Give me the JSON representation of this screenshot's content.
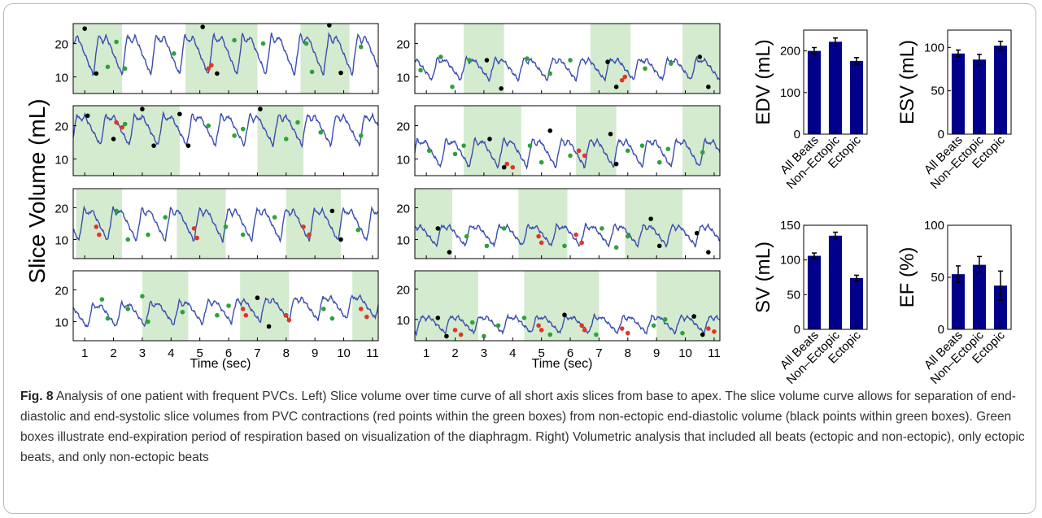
{
  "colors": {
    "curve": "#3b4db0",
    "shade": "#d4ebcf",
    "bar": "#00008b",
    "point_ed": "#000000",
    "point_ectopic": "#e0352b",
    "point_other": "#2ca33a"
  },
  "left_panel": {
    "ylabel": "Slice Volume (mL)",
    "xlabel": "Time (sec)",
    "xticks": [
      1,
      2,
      3,
      4,
      5,
      6,
      7,
      8,
      9,
      10,
      11
    ],
    "yticks": [
      10,
      20
    ]
  },
  "bar_panel": {
    "categories": [
      "All Beats",
      "Non–Ectopic",
      "Ectopic"
    ]
  },
  "chart_data": [
    {
      "type": "line",
      "panel": "slice-r1c1",
      "x_range": [
        0.6,
        11.2
      ],
      "ylim": [
        5,
        26
      ],
      "yticks": [
        10,
        20
      ],
      "shaded_x_ranges": [
        [
          0.6,
          2.3
        ],
        [
          4.5,
          7.0
        ],
        [
          8.5,
          10.2
        ]
      ],
      "profile": {
        "period": 1.0,
        "phase": 0.3,
        "mean": 17.0,
        "amp": 6.5,
        "trend": 0.0
      },
      "points_black": [
        [
          1.0,
          24.5
        ],
        [
          1.4,
          11.0
        ],
        [
          5.1,
          25.0
        ],
        [
          5.6,
          11.0
        ],
        [
          9.5,
          25.5
        ],
        [
          9.9,
          11.2
        ]
      ],
      "points_red": [
        [
          5.3,
          12.5
        ],
        [
          5.4,
          13.5
        ]
      ],
      "points_green": [
        [
          2.1,
          20.5
        ],
        [
          1.8,
          13.0
        ],
        [
          2.4,
          12.5
        ],
        [
          4.1,
          17.0
        ],
        [
          6.2,
          21.0
        ],
        [
          7.2,
          20.0
        ],
        [
          8.7,
          20.0
        ],
        [
          8.9,
          11.5
        ],
        [
          10.6,
          19.0
        ]
      ]
    },
    {
      "type": "line",
      "panel": "slice-r2c1",
      "x_range": [
        0.6,
        11.2
      ],
      "ylim": [
        5,
        26
      ],
      "yticks": [
        10,
        20
      ],
      "shaded_x_ranges": [
        [
          0.6,
          4.3
        ],
        [
          7.0,
          8.6
        ]
      ],
      "profile": {
        "period": 1.0,
        "phase": 0.55,
        "mean": 19.0,
        "amp": 5.0,
        "trend": 0.0
      },
      "points_black": [
        [
          1.1,
          23.0
        ],
        [
          2.0,
          16.0
        ],
        [
          3.0,
          25.0
        ],
        [
          3.4,
          14.0
        ],
        [
          4.3,
          23.5
        ],
        [
          4.6,
          14.0
        ],
        [
          7.1,
          25.0
        ]
      ],
      "points_red": [
        [
          2.1,
          21.0
        ],
        [
          2.3,
          19.5
        ]
      ],
      "points_green": [
        [
          2.4,
          20.5
        ],
        [
          5.3,
          20.0
        ],
        [
          6.2,
          17.0
        ],
        [
          6.5,
          19.0
        ],
        [
          8.0,
          16.0
        ],
        [
          8.4,
          21.0
        ],
        [
          9.2,
          18.0
        ],
        [
          10.6,
          17.0
        ]
      ]
    },
    {
      "type": "line",
      "panel": "slice-r3c1",
      "x_range": [
        0.6,
        11.2
      ],
      "ylim": [
        4,
        26
      ],
      "yticks": [
        10,
        20
      ],
      "shaded_x_ranges": [
        [
          0.7,
          2.3
        ],
        [
          4.2,
          5.9
        ],
        [
          8.0,
          9.9
        ]
      ],
      "profile": {
        "period": 1.0,
        "phase": 0.8,
        "mean": 15.0,
        "amp": 5.5,
        "trend": 0.0
      },
      "points_black": [
        [
          9.6,
          19.0
        ],
        [
          9.9,
          10.0
        ]
      ],
      "points_red": [
        [
          1.4,
          14.0
        ],
        [
          1.5,
          11.5
        ],
        [
          4.8,
          13.5
        ],
        [
          4.9,
          10.5
        ],
        [
          8.6,
          14.0
        ],
        [
          8.8,
          11.5
        ]
      ],
      "points_green": [
        [
          2.1,
          19.0
        ],
        [
          2.5,
          10.0
        ],
        [
          3.2,
          11.5
        ],
        [
          3.8,
          17.0
        ],
        [
          5.9,
          14.0
        ],
        [
          6.5,
          11.5
        ],
        [
          7.6,
          17.0
        ],
        [
          10.5,
          13.0
        ]
      ]
    },
    {
      "type": "line",
      "panel": "slice-r4c1",
      "x_range": [
        0.6,
        11.2
      ],
      "ylim": [
        4,
        26
      ],
      "yticks": [
        10,
        20
      ],
      "shaded_x_ranges": [
        [
          3.0,
          4.6
        ],
        [
          6.4,
          8.1
        ],
        [
          10.3,
          11.2
        ]
      ],
      "profile": {
        "period": 1.0,
        "phase": 0.1,
        "mean": 13.5,
        "amp": 4.0,
        "trend": 0.3
      },
      "points_black": [
        [
          7.0,
          17.5
        ],
        [
          7.4,
          8.5
        ]
      ],
      "points_red": [
        [
          6.5,
          14.0
        ],
        [
          6.6,
          12.0
        ],
        [
          8.0,
          12.0
        ],
        [
          8.1,
          10.5
        ],
        [
          10.6,
          14.0
        ],
        [
          10.8,
          11.5
        ]
      ],
      "points_green": [
        [
          1.6,
          17.0
        ],
        [
          1.8,
          11.0
        ],
        [
          2.5,
          14.0
        ],
        [
          3.0,
          18.0
        ],
        [
          3.2,
          10.0
        ],
        [
          4.4,
          13.0
        ],
        [
          5.6,
          12.0
        ],
        [
          6.0,
          15.0
        ],
        [
          9.3,
          14.0
        ],
        [
          9.6,
          11.0
        ]
      ]
    },
    {
      "type": "line",
      "panel": "slice-r1c2",
      "x_range": [
        0.6,
        11.2
      ],
      "ylim": [
        5,
        26
      ],
      "yticks": [
        10,
        20
      ],
      "shaded_x_ranges": [
        [
          2.3,
          3.7
        ],
        [
          6.7,
          8.1
        ],
        [
          9.9,
          11.2
        ]
      ],
      "profile": {
        "period": 1.0,
        "phase": 0.2,
        "mean": 12.5,
        "amp": 3.5,
        "trend": 0.0
      },
      "points_black": [
        [
          3.1,
          15.0
        ],
        [
          3.6,
          6.5
        ],
        [
          7.3,
          14.5
        ],
        [
          7.6,
          7.0
        ],
        [
          10.5,
          16.0
        ],
        [
          10.8,
          7.0
        ]
      ],
      "points_red": [
        [
          7.8,
          9.0
        ],
        [
          7.9,
          10.0
        ]
      ],
      "points_green": [
        [
          0.8,
          12.0
        ],
        [
          1.5,
          16.0
        ],
        [
          1.9,
          7.0
        ],
        [
          2.5,
          15.0
        ],
        [
          4.5,
          15.5
        ],
        [
          5.3,
          11.0
        ],
        [
          6.0,
          15.0
        ],
        [
          8.6,
          12.5
        ],
        [
          9.5,
          14.0
        ]
      ]
    },
    {
      "type": "line",
      "panel": "slice-r2c2",
      "x_range": [
        0.6,
        11.2
      ],
      "ylim": [
        5,
        26
      ],
      "yticks": [
        10,
        20
      ],
      "shaded_x_ranges": [
        [
          2.3,
          4.3
        ],
        [
          6.2,
          7.6
        ],
        [
          9.9,
          11.2
        ]
      ],
      "profile": {
        "period": 1.0,
        "phase": 0.5,
        "mean": 12.0,
        "amp": 4.5,
        "trend": 0.0
      },
      "points_black": [
        [
          3.2,
          16.0
        ],
        [
          3.7,
          7.5
        ],
        [
          5.3,
          18.5
        ],
        [
          7.4,
          17.5
        ],
        [
          7.6,
          8.5
        ]
      ],
      "points_red": [
        [
          3.8,
          8.5
        ],
        [
          4.0,
          7.5
        ],
        [
          6.3,
          12.5
        ],
        [
          6.5,
          11.0
        ]
      ],
      "points_green": [
        [
          1.1,
          12.5
        ],
        [
          2.0,
          11.5
        ],
        [
          2.3,
          14.0
        ],
        [
          4.6,
          14.0
        ],
        [
          5.0,
          9.0
        ],
        [
          6.0,
          11.0
        ],
        [
          8.0,
          12.5
        ],
        [
          8.5,
          14.0
        ],
        [
          9.1,
          9.0
        ],
        [
          9.4,
          13.0
        ],
        [
          10.6,
          12.0
        ]
      ]
    },
    {
      "type": "line",
      "panel": "slice-r3c2",
      "x_range": [
        0.6,
        11.2
      ],
      "ylim": [
        4,
        26
      ],
      "yticks": [
        10,
        20
      ],
      "shaded_x_ranges": [
        [
          0.6,
          1.9
        ],
        [
          4.2,
          5.9
        ],
        [
          7.9,
          9.9
        ]
      ],
      "profile": {
        "period": 1.0,
        "phase": 0.35,
        "mean": 11.5,
        "amp": 3.5,
        "trend": 0.0
      },
      "points_black": [
        [
          1.4,
          13.5
        ],
        [
          1.8,
          6.0
        ],
        [
          8.8,
          16.5
        ],
        [
          9.1,
          8.0
        ],
        [
          10.4,
          12.0
        ],
        [
          10.8,
          6.0
        ]
      ],
      "points_red": [
        [
          4.9,
          11.0
        ],
        [
          5.0,
          9.0
        ],
        [
          6.2,
          11.5
        ],
        [
          6.4,
          9.0
        ]
      ],
      "points_green": [
        [
          2.4,
          11.0
        ],
        [
          3.1,
          8.0
        ],
        [
          3.7,
          13.5
        ],
        [
          5.8,
          8.0
        ],
        [
          7.1,
          13.5
        ],
        [
          7.6,
          7.5
        ],
        [
          8.0,
          11.0
        ]
      ]
    },
    {
      "type": "line",
      "panel": "slice-r4c2",
      "x_range": [
        0.6,
        11.2
      ],
      "ylim": [
        3,
        26
      ],
      "yticks": [
        10,
        20
      ],
      "shaded_x_ranges": [
        [
          0.6,
          2.8
        ],
        [
          4.4,
          7.0
        ],
        [
          9.0,
          11.2
        ]
      ],
      "profile": {
        "period": 1.0,
        "phase": 0.65,
        "mean": 8.5,
        "amp": 3.0,
        "trend": 0.0
      },
      "points_black": [
        [
          1.4,
          10.5
        ],
        [
          1.7,
          4.5
        ],
        [
          5.8,
          11.5
        ],
        [
          10.3,
          11.0
        ],
        [
          10.6,
          5.0
        ]
      ],
      "points_red": [
        [
          2.0,
          6.5
        ],
        [
          2.2,
          5.0
        ],
        [
          4.9,
          8.0
        ],
        [
          5.0,
          6.5
        ],
        [
          6.4,
          8.0
        ],
        [
          6.5,
          6.5
        ],
        [
          7.8,
          7.0
        ],
        [
          8.0,
          5.5
        ],
        [
          10.8,
          7.0
        ],
        [
          11.0,
          6.0
        ]
      ],
      "points_green": [
        [
          2.6,
          9.0
        ],
        [
          3.0,
          4.5
        ],
        [
          3.5,
          8.0
        ],
        [
          4.4,
          10.5
        ],
        [
          5.3,
          5.0
        ],
        [
          6.9,
          5.0
        ],
        [
          8.9,
          8.0
        ],
        [
          9.3,
          10.0
        ],
        [
          9.9,
          5.5
        ]
      ]
    },
    {
      "type": "bar",
      "panel": "edv",
      "categories": [
        "All Beats",
        "Non–Ectopic",
        "Ectopic"
      ],
      "values": [
        200,
        222,
        176
      ],
      "errors": [
        8,
        9,
        8
      ],
      "ylabel": "EDV (mL)",
      "ylim": [
        0,
        250
      ],
      "yticks": [
        0,
        100,
        200
      ]
    },
    {
      "type": "bar",
      "panel": "esv",
      "categories": [
        "All Beats",
        "Non–Ectopic",
        "Ectopic"
      ],
      "values": [
        93,
        86,
        102
      ],
      "errors": [
        4,
        6,
        5
      ],
      "ylabel": "ESV (mL)",
      "ylim": [
        0,
        120
      ],
      "yticks": [
        0,
        50,
        100
      ]
    },
    {
      "type": "bar",
      "panel": "sv",
      "categories": [
        "All Beats",
        "Non–Ectopic",
        "Ectopic"
      ],
      "values": [
        106,
        135,
        74
      ],
      "errors": [
        4,
        5,
        4
      ],
      "ylabel": "SV (mL)",
      "ylim": [
        0,
        150
      ],
      "yticks": [
        0,
        50,
        100,
        150
      ]
    },
    {
      "type": "bar",
      "panel": "ef",
      "categories": [
        "All Beats",
        "Non–Ectopic",
        "Ectopic"
      ],
      "values": [
        53,
        62,
        42
      ],
      "errors": [
        8,
        8,
        14
      ],
      "ylabel": "EF (%)",
      "ylim": [
        0,
        100
      ],
      "yticks": [
        0,
        50,
        100
      ]
    }
  ],
  "caption": {
    "label": "Fig. 8",
    "text": "Analysis of one patient with frequent PVCs. Left) Slice volume over time curve of all short axis slices from base to apex. The slice volume curve allows for separation of end-diastolic and end-systolic slice volumes from PVC contractions (red points within the green boxes) from non-ectopic end-diastolic volume (black points within green boxes). Green boxes illustrate end-expiration period of respiration based on visualization of the diaphragm. Right) Volumetric analysis that included all beats (ectopic and non-ectopic), only ectopic beats, and only non-ectopic beats"
  }
}
